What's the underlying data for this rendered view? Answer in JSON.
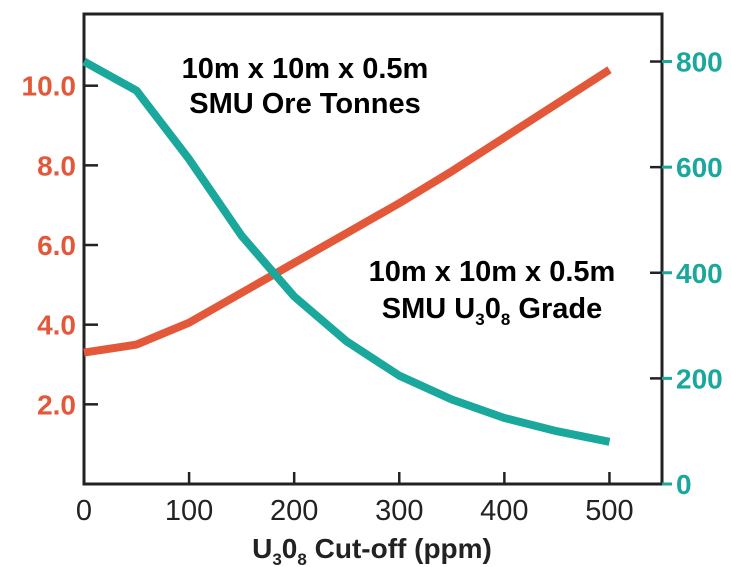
{
  "colors": {
    "grade": "#e4583a",
    "tonnes": "#1aa79c",
    "axis": "#222222"
  },
  "chart_data": {
    "type": "line",
    "x": [
      0,
      50,
      100,
      150,
      200,
      250,
      300,
      350,
      400,
      450,
      500
    ],
    "xlabel": {
      "main": "U",
      "sub1": "3",
      "mid": "0",
      "sub2": "8",
      "tail": " Cut-off (ppm)"
    },
    "xlim": [
      0,
      550
    ],
    "x_ticks": [
      "0",
      "100",
      "200",
      "300",
      "400",
      "500"
    ],
    "y_left": {
      "lim": [
        0,
        11.8
      ],
      "ticks": [
        "2.0",
        "4.0",
        "6.0",
        "8.0",
        "10.0"
      ]
    },
    "y_right": {
      "lim": [
        0,
        890
      ],
      "ticks": [
        "0",
        "200",
        "400",
        "600",
        "800"
      ]
    },
    "series": [
      {
        "axis": "left",
        "color": "#e4583a",
        "values": [
          3.3,
          3.5,
          4.05,
          4.8,
          5.55,
          6.3,
          7.05,
          7.85,
          8.7,
          9.55,
          10.4
        ]
      },
      {
        "axis": "right",
        "color": "#1aa79c",
        "values": [
          800,
          745,
          615,
          470,
          355,
          270,
          205,
          160,
          125,
          100,
          80
        ]
      }
    ],
    "annotations": [
      {
        "line1": "10m x 10m x 0.5m",
        "line2": "SMU Ore Tonnes",
        "color": "#1aa79c"
      },
      {
        "line1": "10m x 10m x 0.5m",
        "line2a": "SMU U",
        "sub1": "3",
        "line2b": "0",
        "sub2": "8",
        "line2c": " Grade",
        "color": "#e4583a"
      }
    ]
  }
}
